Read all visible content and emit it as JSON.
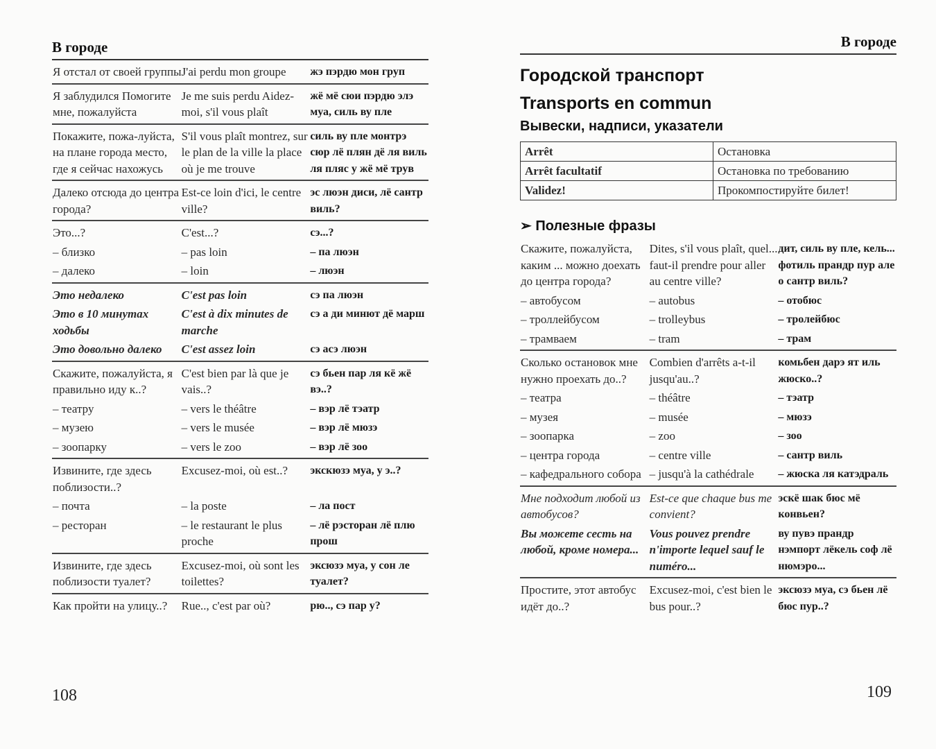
{
  "left": {
    "running_head": "В городе",
    "page_number": "108",
    "groups": [
      [
        {
          "ru": "Я отстал от своей группы",
          "fr": "J'ai perdu mon groupe",
          "tr": "жэ пэрдю мон груп"
        }
      ],
      [
        {
          "ru": "Я заблудился Помогите мне, пожалуйста",
          "fr": "Je me suis perdu Aidez-moi, s'il vous plaît",
          "tr": "жё мё сюи пэрдю элэ муа, силь ву пле"
        }
      ],
      [
        {
          "ru": "Покажите, пожа-луйста, на плане города место, где я сейчас нахожусь",
          "fr": "S'il vous plaît montrez, sur le plan de la ville la place où je me trouve",
          "tr": "силь ву пле монтрэ сюр лё плян дё ля виль ля пляс у жё мё трув"
        }
      ],
      [
        {
          "ru": "Далеко отсюда до центра города?",
          "fr": "Est-ce loin d'ici, le centre ville?",
          "tr": "эс люэн диси, лё сантр виль?"
        }
      ],
      [
        {
          "ru": "Это...?",
          "fr": "C'est...?",
          "tr": "сэ...?"
        },
        {
          "ru": "– близко",
          "fr": "– pas loin",
          "tr": "– па люэн"
        },
        {
          "ru": "– далеко",
          "fr": "– loin",
          "tr": "– люэн"
        }
      ],
      [
        {
          "ru": "Это недалеко",
          "fr": "C'est pas loin",
          "tr": "сэ па люэн",
          "style": "italic"
        },
        {
          "ru": "Это в 10 минутах ходьбы",
          "fr": "C'est à dix minutes de marche",
          "tr": "сэ а ди минют дё марш",
          "style": "italic"
        },
        {
          "ru": "Это довольно далеко",
          "fr": "C'est assez loin",
          "tr": "сэ асэ люэн",
          "style": "italic"
        }
      ],
      [
        {
          "ru": "Скажите, пожалуйста, я правильно иду к..?",
          "fr": "C'est bien par là que je vais..?",
          "tr": "сэ бьен пар ля кё жё вэ..?"
        },
        {
          "ru": "– театру",
          "fr": "– vers le théâtre",
          "tr": "– вэр лё тэатр"
        },
        {
          "ru": "– музею",
          "fr": "– vers le musée",
          "tr": "– вэр лё мюзэ"
        },
        {
          "ru": "– зоопарку",
          "fr": "– vers le zoo",
          "tr": "– вэр лё зоо"
        }
      ],
      [
        {
          "ru": "Извините, где здесь поблизости..?",
          "fr": "Excusez-moi, où est..?",
          "tr": "экскюзэ муа, у э..?"
        },
        {
          "ru": "– почта",
          "fr": "– la poste",
          "tr": "– ла пост"
        },
        {
          "ru": "– ресторан",
          "fr": "– le restaurant le plus proche",
          "tr": "– лё рэсторан лё плю прош"
        }
      ],
      [
        {
          "ru": "Извините, где здесь поблизости туалет?",
          "fr": "Excusez-moi, où sont les toilettes?",
          "tr": "эксюзэ муа, у сон ле туалет?"
        }
      ],
      [
        {
          "ru": "Как пройти на улицу..?",
          "fr": "Rue.., c'est par où?",
          "tr": "рю.., сэ пар у?"
        }
      ]
    ]
  },
  "right": {
    "running_head": "В городе",
    "page_number": "109",
    "title_ru": "Городской транспорт",
    "title_fr": "Transports en commun",
    "signs_heading": "Вывески, надписи, указатели",
    "signs": [
      {
        "fr": "Arrêt",
        "ru": "Остановка"
      },
      {
        "fr": "Arrêt facultatif",
        "ru": "Остановка по требованию"
      },
      {
        "fr": "Validez!",
        "ru": "Прокомпостируйте билет!"
      }
    ],
    "phrases_marker": "➢",
    "phrases_heading": "Полезные фразы",
    "groups": [
      [
        {
          "ru": "Скажите, пожалуйста, каким ... можно доехать до центра города?",
          "fr": "Dites, s'il vous plaît, quel... faut-il prendre pour aller au centre ville?",
          "tr": "дит, силь ву пле, кель... фотиль прандр пур але о сантр виль?"
        },
        {
          "ru": "– автобусом",
          "fr": "– autobus",
          "tr": "– отобюс"
        },
        {
          "ru": "– троллейбусом",
          "fr": "– trolleybus",
          "tr": "– тролейбюс"
        },
        {
          "ru": "– трамваем",
          "fr": "– tram",
          "tr": "– трам"
        }
      ],
      [
        {
          "ru": "Сколько остановок мне нужно проехать до..?",
          "fr": "Combien d'arrêts a-t-il jusqu'au..?",
          "tr": "комьбен дарэ ят иль жюско..?"
        },
        {
          "ru": "– театра",
          "fr": "– théâtre",
          "tr": "– тэатр"
        },
        {
          "ru": "– музея",
          "fr": "– musée",
          "tr": "– мюзэ"
        },
        {
          "ru": "– зоопарка",
          "fr": "– zoo",
          "tr": "– зоо"
        },
        {
          "ru": "– центра города",
          "fr": "– centre ville",
          "tr": "– сантр виль"
        },
        {
          "ru": "– кафедрального собора",
          "fr": "– jusqu'à la cathédrale",
          "tr": "– жюска ля катэдраль"
        }
      ],
      [
        {
          "ru": "Мне подходит любой из автобусов?",
          "fr": "Est-ce que chaque bus me convient?",
          "tr": "эскё шак бюс мё конвьен?",
          "style": "ital-light"
        },
        {
          "ru": "Вы можете сесть на любой, кроме номера...",
          "fr": "Vous pouvez prendre n'importe lequel sauf le numéro...",
          "tr": "ву пувэ прандр нэмпорт лёкель соф лё нюмэро...",
          "style": "italic"
        }
      ],
      [
        {
          "ru": "Простите, этот автобус идёт до..?",
          "fr": "Excusez-moi, c'est bien le bus pour..?",
          "tr": "эксюзэ муа, сэ бьен лё бюс пур..?"
        }
      ]
    ]
  }
}
